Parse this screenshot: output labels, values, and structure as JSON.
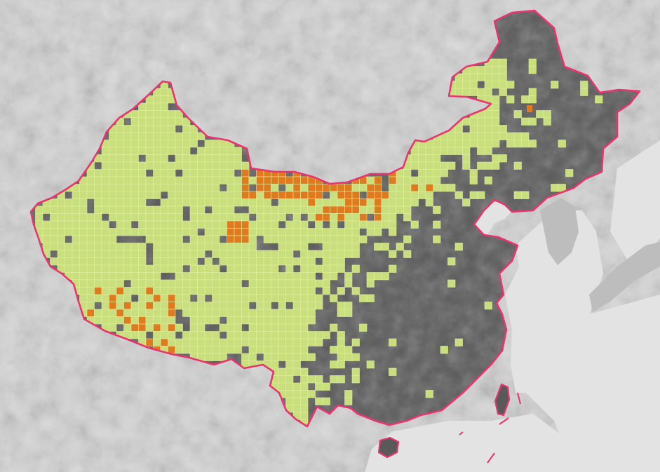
{
  "map": {
    "region": "China",
    "colors": {
      "basemap": "#d4d4d4",
      "basemap_relief_dark": "#bdbdbd",
      "sea": "#e3e3e3",
      "region_fill": "#595959",
      "region_relief": "#4b4b4b",
      "border": "#e8356f",
      "grid_cell_green": "#c9df7e",
      "grid_cell_orange": "#e07a1f",
      "grid_line": "#dfee9c"
    },
    "legend": [],
    "annotations": []
  }
}
